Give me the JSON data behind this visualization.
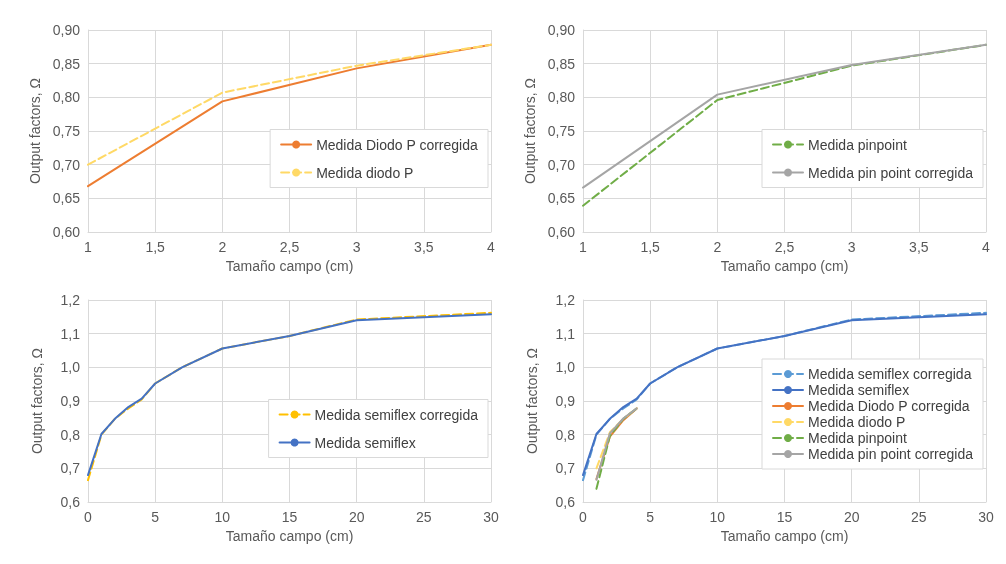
{
  "chart_data": [
    {
      "type": "line",
      "xlabel": "Tamaño campo (cm)",
      "ylabel": "Output factors, Ω",
      "xlim": [
        1,
        4
      ],
      "ylim": [
        0.6,
        0.9
      ],
      "xticks": [
        1,
        {
          "value": 1.5,
          "label": "1,5"
        },
        2,
        {
          "value": 2.5,
          "label": "2,5"
        },
        3,
        {
          "value": 3.5,
          "label": "3,5"
        },
        4
      ],
      "yticks": [
        {
          "value": 0.6,
          "label": "0,60"
        },
        {
          "value": 0.65,
          "label": "0,65"
        },
        {
          "value": 0.7,
          "label": "0,70"
        },
        {
          "value": 0.75,
          "label": "0,75"
        },
        {
          "value": 0.8,
          "label": "0,80"
        },
        {
          "value": 0.85,
          "label": "0,85"
        },
        {
          "value": 0.9,
          "label": "0,90"
        }
      ],
      "grid": true,
      "legend": "right",
      "marker": "none",
      "series": [
        {
          "name": "Medida Diodo P corregida",
          "color": "#ed7d31",
          "line_style": "solid",
          "x": [
            1,
            2,
            3,
            4
          ],
          "values": [
            0.668,
            0.794,
            0.843,
            0.878
          ]
        },
        {
          "name": "Medida diodo P",
          "color": "#ffd966",
          "line_style": "dashed",
          "x": [
            1,
            2,
            3,
            4
          ],
          "values": [
            0.7,
            0.807,
            0.847,
            0.878
          ]
        }
      ]
    },
    {
      "type": "line",
      "xlabel": "Tamaño campo (cm)",
      "ylabel": "Output factors, Ω",
      "xlim": [
        1,
        4
      ],
      "ylim": [
        0.6,
        0.9
      ],
      "xticks": [
        1,
        {
          "value": 1.5,
          "label": "1,5"
        },
        2,
        {
          "value": 2.5,
          "label": "2,5"
        },
        3,
        {
          "value": 3.5,
          "label": "3,5"
        },
        4
      ],
      "yticks": [
        {
          "value": 0.6,
          "label": "0,60"
        },
        {
          "value": 0.65,
          "label": "0,65"
        },
        {
          "value": 0.7,
          "label": "0,70"
        },
        {
          "value": 0.75,
          "label": "0,75"
        },
        {
          "value": 0.8,
          "label": "0,80"
        },
        {
          "value": 0.85,
          "label": "0,85"
        },
        {
          "value": 0.9,
          "label": "0,90"
        }
      ],
      "grid": true,
      "legend": "right",
      "marker": "none",
      "series": [
        {
          "name": "Medida pinpoint",
          "color": "#70ad47",
          "line_style": "dashed",
          "x": [
            1,
            2,
            3,
            4
          ],
          "values": [
            0.639,
            0.796,
            0.847,
            0.878
          ]
        },
        {
          "name": "Medida pin point corregida",
          "color": "#a5a5a5",
          "line_style": "solid",
          "x": [
            1,
            2,
            3,
            4
          ],
          "values": [
            0.666,
            0.804,
            0.848,
            0.878
          ]
        }
      ]
    },
    {
      "type": "line",
      "xlabel": "Tamaño campo (cm)",
      "ylabel": "Output factors, Ω",
      "xlim": [
        0,
        30
      ],
      "ylim": [
        0.6,
        1.2
      ],
      "xticks": [
        0,
        5,
        10,
        15,
        20,
        25,
        30
      ],
      "yticks": [
        {
          "value": 0.6,
          "label": "0,6"
        },
        {
          "value": 0.7,
          "label": "0,7"
        },
        {
          "value": 0.8,
          "label": "0,8"
        },
        {
          "value": 0.9,
          "label": "0,9"
        },
        {
          "value": 1.0,
          "label": "1,0"
        },
        {
          "value": 1.1,
          "label": "1,1"
        },
        {
          "value": 1.2,
          "label": "1,2"
        }
      ],
      "grid": true,
      "legend": "right",
      "marker": "none",
      "series": [
        {
          "name": "Medida semiflex corregida",
          "color": "#ffc000",
          "line_style": "dashed",
          "x": [
            0,
            1,
            2,
            3,
            4,
            5,
            7,
            10,
            15,
            20,
            30
          ],
          "values": [
            0.665,
            0.8,
            0.847,
            0.878,
            0.905,
            0.952,
            1.0,
            1.056,
            1.093,
            1.142,
            1.162
          ]
        },
        {
          "name": "Medida semiflex",
          "color": "#4472c4",
          "line_style": "solid",
          "x": [
            0,
            1,
            2,
            3,
            4,
            5,
            7,
            10,
            15,
            20,
            30
          ],
          "values": [
            0.68,
            0.802,
            0.847,
            0.882,
            0.907,
            0.952,
            1.0,
            1.056,
            1.093,
            1.14,
            1.158
          ]
        }
      ]
    },
    {
      "type": "line",
      "xlabel": "Tamaño campo (cm)",
      "ylabel": "Output factors, Ω",
      "xlim": [
        0,
        30
      ],
      "ylim": [
        0.6,
        1.2
      ],
      "xticks": [
        0,
        5,
        10,
        15,
        20,
        25,
        30
      ],
      "yticks": [
        {
          "value": 0.6,
          "label": "0,6"
        },
        {
          "value": 0.7,
          "label": "0,7"
        },
        {
          "value": 0.8,
          "label": "0,8"
        },
        {
          "value": 0.9,
          "label": "0,9"
        },
        {
          "value": 1.0,
          "label": "1,0"
        },
        {
          "value": 1.1,
          "label": "1,1"
        },
        {
          "value": 1.2,
          "label": "1,2"
        }
      ],
      "grid": true,
      "legend": "right",
      "marker": "none",
      "series": [
        {
          "name": "Medida semiflex corregida",
          "color": "#5b9bd5",
          "line_style": "dashed",
          "x": [
            0,
            1,
            2,
            3,
            4,
            5,
            7,
            10,
            15,
            20,
            30
          ],
          "values": [
            0.665,
            0.8,
            0.847,
            0.878,
            0.905,
            0.952,
            1.0,
            1.056,
            1.093,
            1.142,
            1.162
          ]
        },
        {
          "name": "Medida semiflex",
          "color": "#4472c4",
          "line_style": "solid",
          "x": [
            0,
            1,
            2,
            3,
            4,
            5,
            7,
            10,
            15,
            20,
            30
          ],
          "values": [
            0.68,
            0.802,
            0.847,
            0.882,
            0.907,
            0.952,
            1.0,
            1.056,
            1.093,
            1.14,
            1.158
          ]
        },
        {
          "name": "Medida Diodo P corregida",
          "color": "#ed7d31",
          "line_style": "solid",
          "x": [
            1,
            2,
            3,
            4
          ],
          "values": [
            0.668,
            0.794,
            0.843,
            0.878
          ]
        },
        {
          "name": "Medida diodo P",
          "color": "#ffd966",
          "line_style": "dashed",
          "x": [
            1,
            2,
            3,
            4
          ],
          "values": [
            0.7,
            0.807,
            0.847,
            0.878
          ]
        },
        {
          "name": "Medida pinpoint",
          "color": "#70ad47",
          "line_style": "dashed",
          "x": [
            1,
            2,
            3,
            4
          ],
          "values": [
            0.639,
            0.796,
            0.847,
            0.878
          ]
        },
        {
          "name": "Medida pin point corregida",
          "color": "#a5a5a5",
          "line_style": "solid",
          "x": [
            1,
            2,
            3,
            4
          ],
          "values": [
            0.666,
            0.804,
            0.848,
            0.878
          ]
        }
      ]
    }
  ]
}
